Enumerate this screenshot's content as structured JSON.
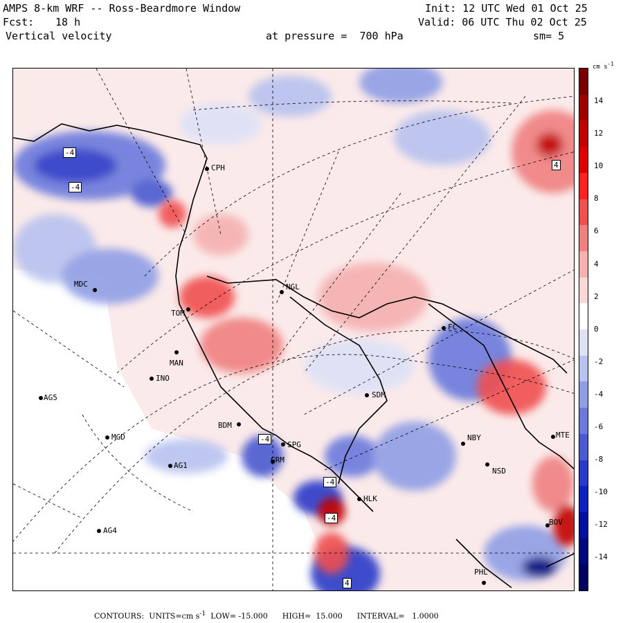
{
  "header": {
    "title": "AMPS 8-km WRF -- Ross-Beardmore Window",
    "fcst_label": "Fcst:",
    "fcst_value": "18 h",
    "field": "Vertical velocity",
    "pressure": "at pressure =  700 hPa",
    "init": "Init: 12 UTC Wed 01 Oct 25",
    "valid": "Valid: 06 UTC Thu 02 Oct 25",
    "smoothing": "sm= 5"
  },
  "stations": [
    "CPH",
    "MDC",
    "NGL",
    "TOM",
    "MAN",
    "INO",
    "AG5",
    "BDM",
    "MGD",
    "SPG",
    "GRM",
    "AG1",
    "HLK",
    "AG4",
    "SDM",
    "NBY",
    "NSD",
    "FC",
    "PHL",
    "BOV",
    "MTE"
  ],
  "contour_boxes": [
    "-4",
    "-4",
    "4",
    "-4",
    "-4",
    "-4",
    "4"
  ],
  "colorbar": {
    "units_label": "cm s",
    "units_exponent": "-1",
    "ticks": [
      "14",
      "12",
      "10",
      "8",
      "6",
      "4",
      "2",
      "0",
      "-2",
      "-4",
      "-6",
      "-8",
      "-10",
      "-12",
      "-14"
    ],
    "colors": [
      "#7a0000",
      "#a00000",
      "#c20000",
      "#e00000",
      "#ff2020",
      "#f05050",
      "#f08080",
      "#f6b0b0",
      "#fad8d8",
      "#ffffff",
      "#dde2f7",
      "#b8c2ef",
      "#8f9ee5",
      "#6b7adc",
      "#4a5ad0",
      "#2a3ac8",
      "#1020c0",
      "#0010a0",
      "#000880",
      "#000460"
    ]
  },
  "footer": {
    "contours": "CONTOURS:  UNITS=cm s",
    "exponent": "-1",
    "low": "LOW= -15.000",
    "high": "HIGH=  15.000",
    "interval": "INTERVAL=   1.0000"
  }
}
